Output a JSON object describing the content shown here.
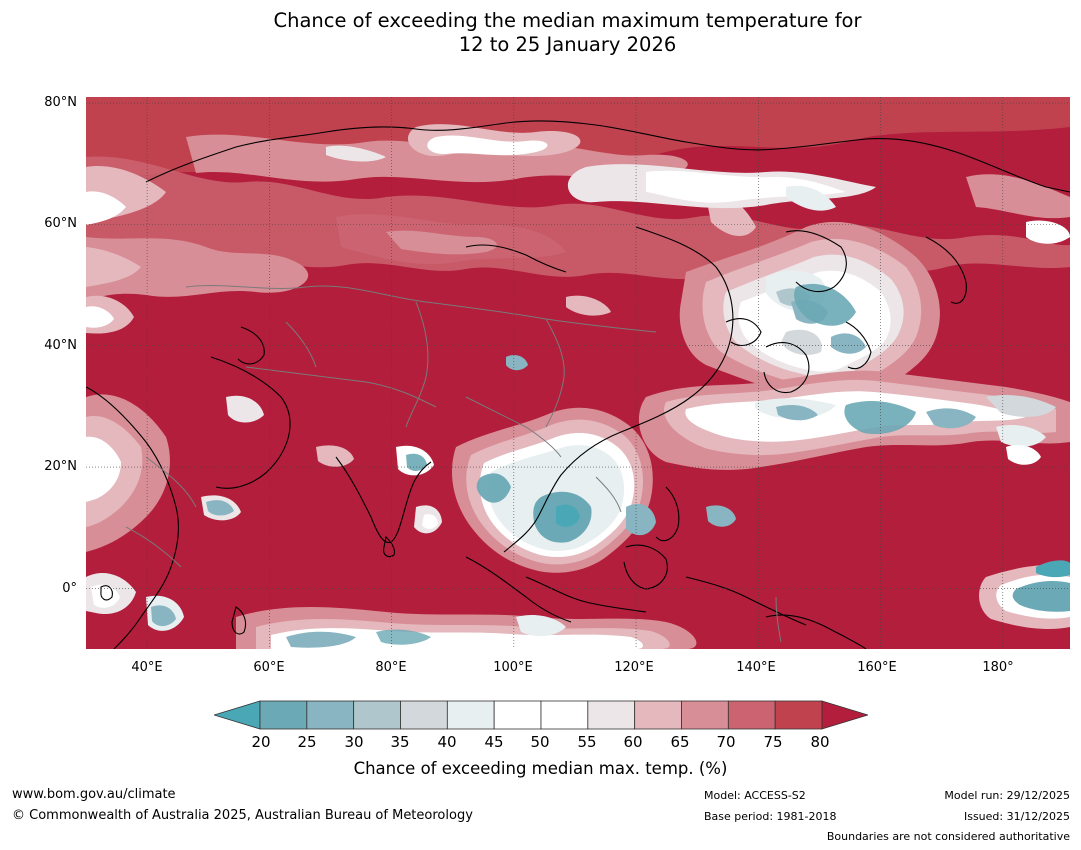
{
  "title": {
    "line1": "Chance of exceeding the median maximum temperature for",
    "line2": "12 to 25 January 2026"
  },
  "map": {
    "lat_labels": [
      "80°N",
      "60°N",
      "40°N",
      "20°N",
      "0°"
    ],
    "lon_labels": [
      "40°E",
      "60°E",
      "80°E",
      "100°E",
      "120°E",
      "140°E",
      "160°E",
      "180°"
    ],
    "lat_values": [
      80,
      60,
      40,
      20,
      0
    ],
    "lon_values": [
      40,
      60,
      80,
      100,
      120,
      140,
      160,
      180
    ],
    "extent": {
      "lon_min": 30,
      "lon_max": 191,
      "lat_min": -10,
      "lat_max": 81
    },
    "colors": {
      "red_high": "#b21e3b",
      "red_75": "#c0424f",
      "red_70": "#cb6470",
      "red_65": "#d88e96",
      "pink_60": "#e4b8bd",
      "light_55": "#ece6e8",
      "white": "#ffffff",
      "grey_40": "#e8eff1",
      "grey_35": "#d2d8db",
      "teal_30": "#aec6cc",
      "teal_25": "#88b5c1",
      "teal_20": "#6aa9b5",
      "teal_low": "#49a7b6",
      "coast": "#000000",
      "border": "#7a7a7a"
    }
  },
  "colorbar": {
    "ticks": [
      "20",
      "25",
      "30",
      "35",
      "40",
      "45",
      "50",
      "55",
      "60",
      "65",
      "70",
      "75",
      "80"
    ],
    "colors": [
      "#6aa9b5",
      "#88b5c1",
      "#aec6cc",
      "#d2d8db",
      "#e8eff1",
      "#ffffff",
      "#ffffff",
      "#ece6e8",
      "#e4b8bd",
      "#d88e96",
      "#cb6470",
      "#c0424f"
    ],
    "under_color": "#49a7b6",
    "over_color": "#b21e3b",
    "label": "Chance of exceeding median max. temp. (%)"
  },
  "footer": {
    "website": "www.bom.gov.au/climate",
    "copyright": "© Commonwealth of Australia 2025, Australian Bureau of Meteorology",
    "model": "Model: ACCESS-S2",
    "base_period": "Base period: 1981-2018",
    "model_run": "Model run: 29/12/2025",
    "issued": "Issued: 31/12/2025",
    "disclaimer": "Boundaries are not considered authoritative"
  }
}
